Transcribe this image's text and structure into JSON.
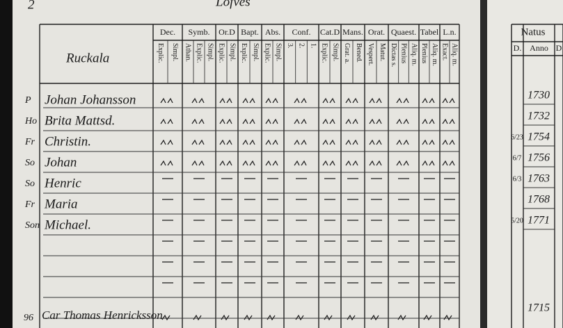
{
  "header": {
    "page_number": "2",
    "top": "Lofves"
  },
  "place": "Ruckala",
  "columns": [
    {
      "label": "Dec.",
      "sub": [
        "Simpl.",
        "Explic."
      ]
    },
    {
      "label": "Symb.",
      "sub": [
        "Simpl.",
        "Explic.",
        "Athan."
      ]
    },
    {
      "label": "Or.D",
      "sub": [
        "Simpl.",
        "Explic."
      ]
    },
    {
      "label": "Bapt.",
      "sub": [
        "Simpl.",
        "Explic."
      ]
    },
    {
      "label": "Abs.",
      "sub": [
        "Simpl.",
        "Explic."
      ]
    },
    {
      "label": "Conf.",
      "sub": [
        "1.",
        "2.",
        "3."
      ]
    },
    {
      "label": "Cat.D",
      "sub": [
        "Simpl.",
        "Explic."
      ]
    },
    {
      "label": "Mans.",
      "sub": [
        "Bened.",
        "Grat. a."
      ]
    },
    {
      "label": "Orat.",
      "sub": [
        "Matut.",
        "Vespert."
      ]
    },
    {
      "label": "Quaest.",
      "sub": [
        "Aliq. m.",
        "Plenius",
        "Dictas s."
      ]
    },
    {
      "label": "Tabel",
      "sub": [
        "Aliq. m.",
        "Plenius"
      ]
    },
    {
      "label": "L.n.",
      "sub": [
        "Aliq. m.",
        "Exact."
      ]
    }
  ],
  "rows": [
    {
      "margin": "P",
      "name": "Johan Johansson"
    },
    {
      "margin": "Ho",
      "name": "Brita Mattsd."
    },
    {
      "margin": "Fr",
      "name": "Christin."
    },
    {
      "margin": "So",
      "name": "Johan"
    },
    {
      "margin": "So",
      "name": "Henric"
    },
    {
      "margin": "Fr",
      "name": "Maria"
    },
    {
      "margin": "Son",
      "name": "Michael."
    }
  ],
  "bottom_row": {
    "margin": "96",
    "name": "Car Thomas Henricksson"
  },
  "natus": {
    "title": "Natus",
    "headers": [
      "D.",
      "Anno",
      "D"
    ],
    "rows": [
      {
        "day": "",
        "year": "1730"
      },
      {
        "day": "",
        "year": "1732"
      },
      {
        "day": "6/23",
        "year": "1754"
      },
      {
        "day": "6/7",
        "year": "1756"
      },
      {
        "day": "6/3",
        "year": "1763"
      },
      {
        "day": "",
        "year": "1768"
      },
      {
        "day": "5/20",
        "year": "1771"
      }
    ],
    "bottom_year": "1715"
  }
}
